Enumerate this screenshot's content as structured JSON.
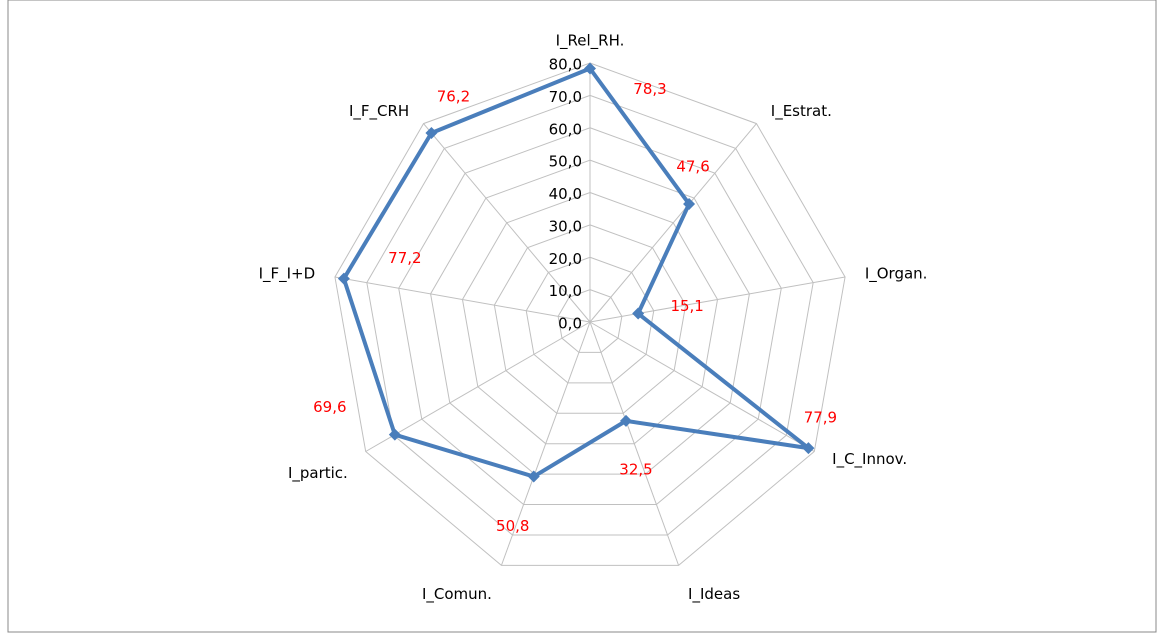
{
  "chart_data": {
    "type": "radar",
    "categories": [
      "I_Rel_RH.",
      "I_Estrat.",
      "I_Organ.",
      "I_C_Innov.",
      "I_Ideas",
      "I_Comun.",
      "I_partic.",
      "I_F_I+D",
      "I_F_CRH"
    ],
    "series": [
      {
        "color": "#4a7ebb",
        "values": [
          78.3,
          47.6,
          15.1,
          77.9,
          32.5,
          50.8,
          69.6,
          77.2,
          76.2
        ],
        "value_labels": [
          "78,3",
          "47,6",
          "15,1",
          "77,9",
          "32,5",
          "50,8",
          "69,6",
          "77,2",
          "76,2"
        ]
      }
    ],
    "ylim": [
      0,
      80
    ],
    "yticks": [
      {
        "value": 0,
        "label": "0,0"
      },
      {
        "value": 10,
        "label": "10,0"
      },
      {
        "value": 20,
        "label": "20,0"
      },
      {
        "value": 30,
        "label": "30,0"
      },
      {
        "value": 40,
        "label": "40,0"
      },
      {
        "value": 50,
        "label": "50,0"
      },
      {
        "value": 60,
        "label": "60,0"
      },
      {
        "value": 70,
        "label": "70,0"
      },
      {
        "value": 80,
        "label": "80,0"
      }
    ],
    "grid": true
  }
}
